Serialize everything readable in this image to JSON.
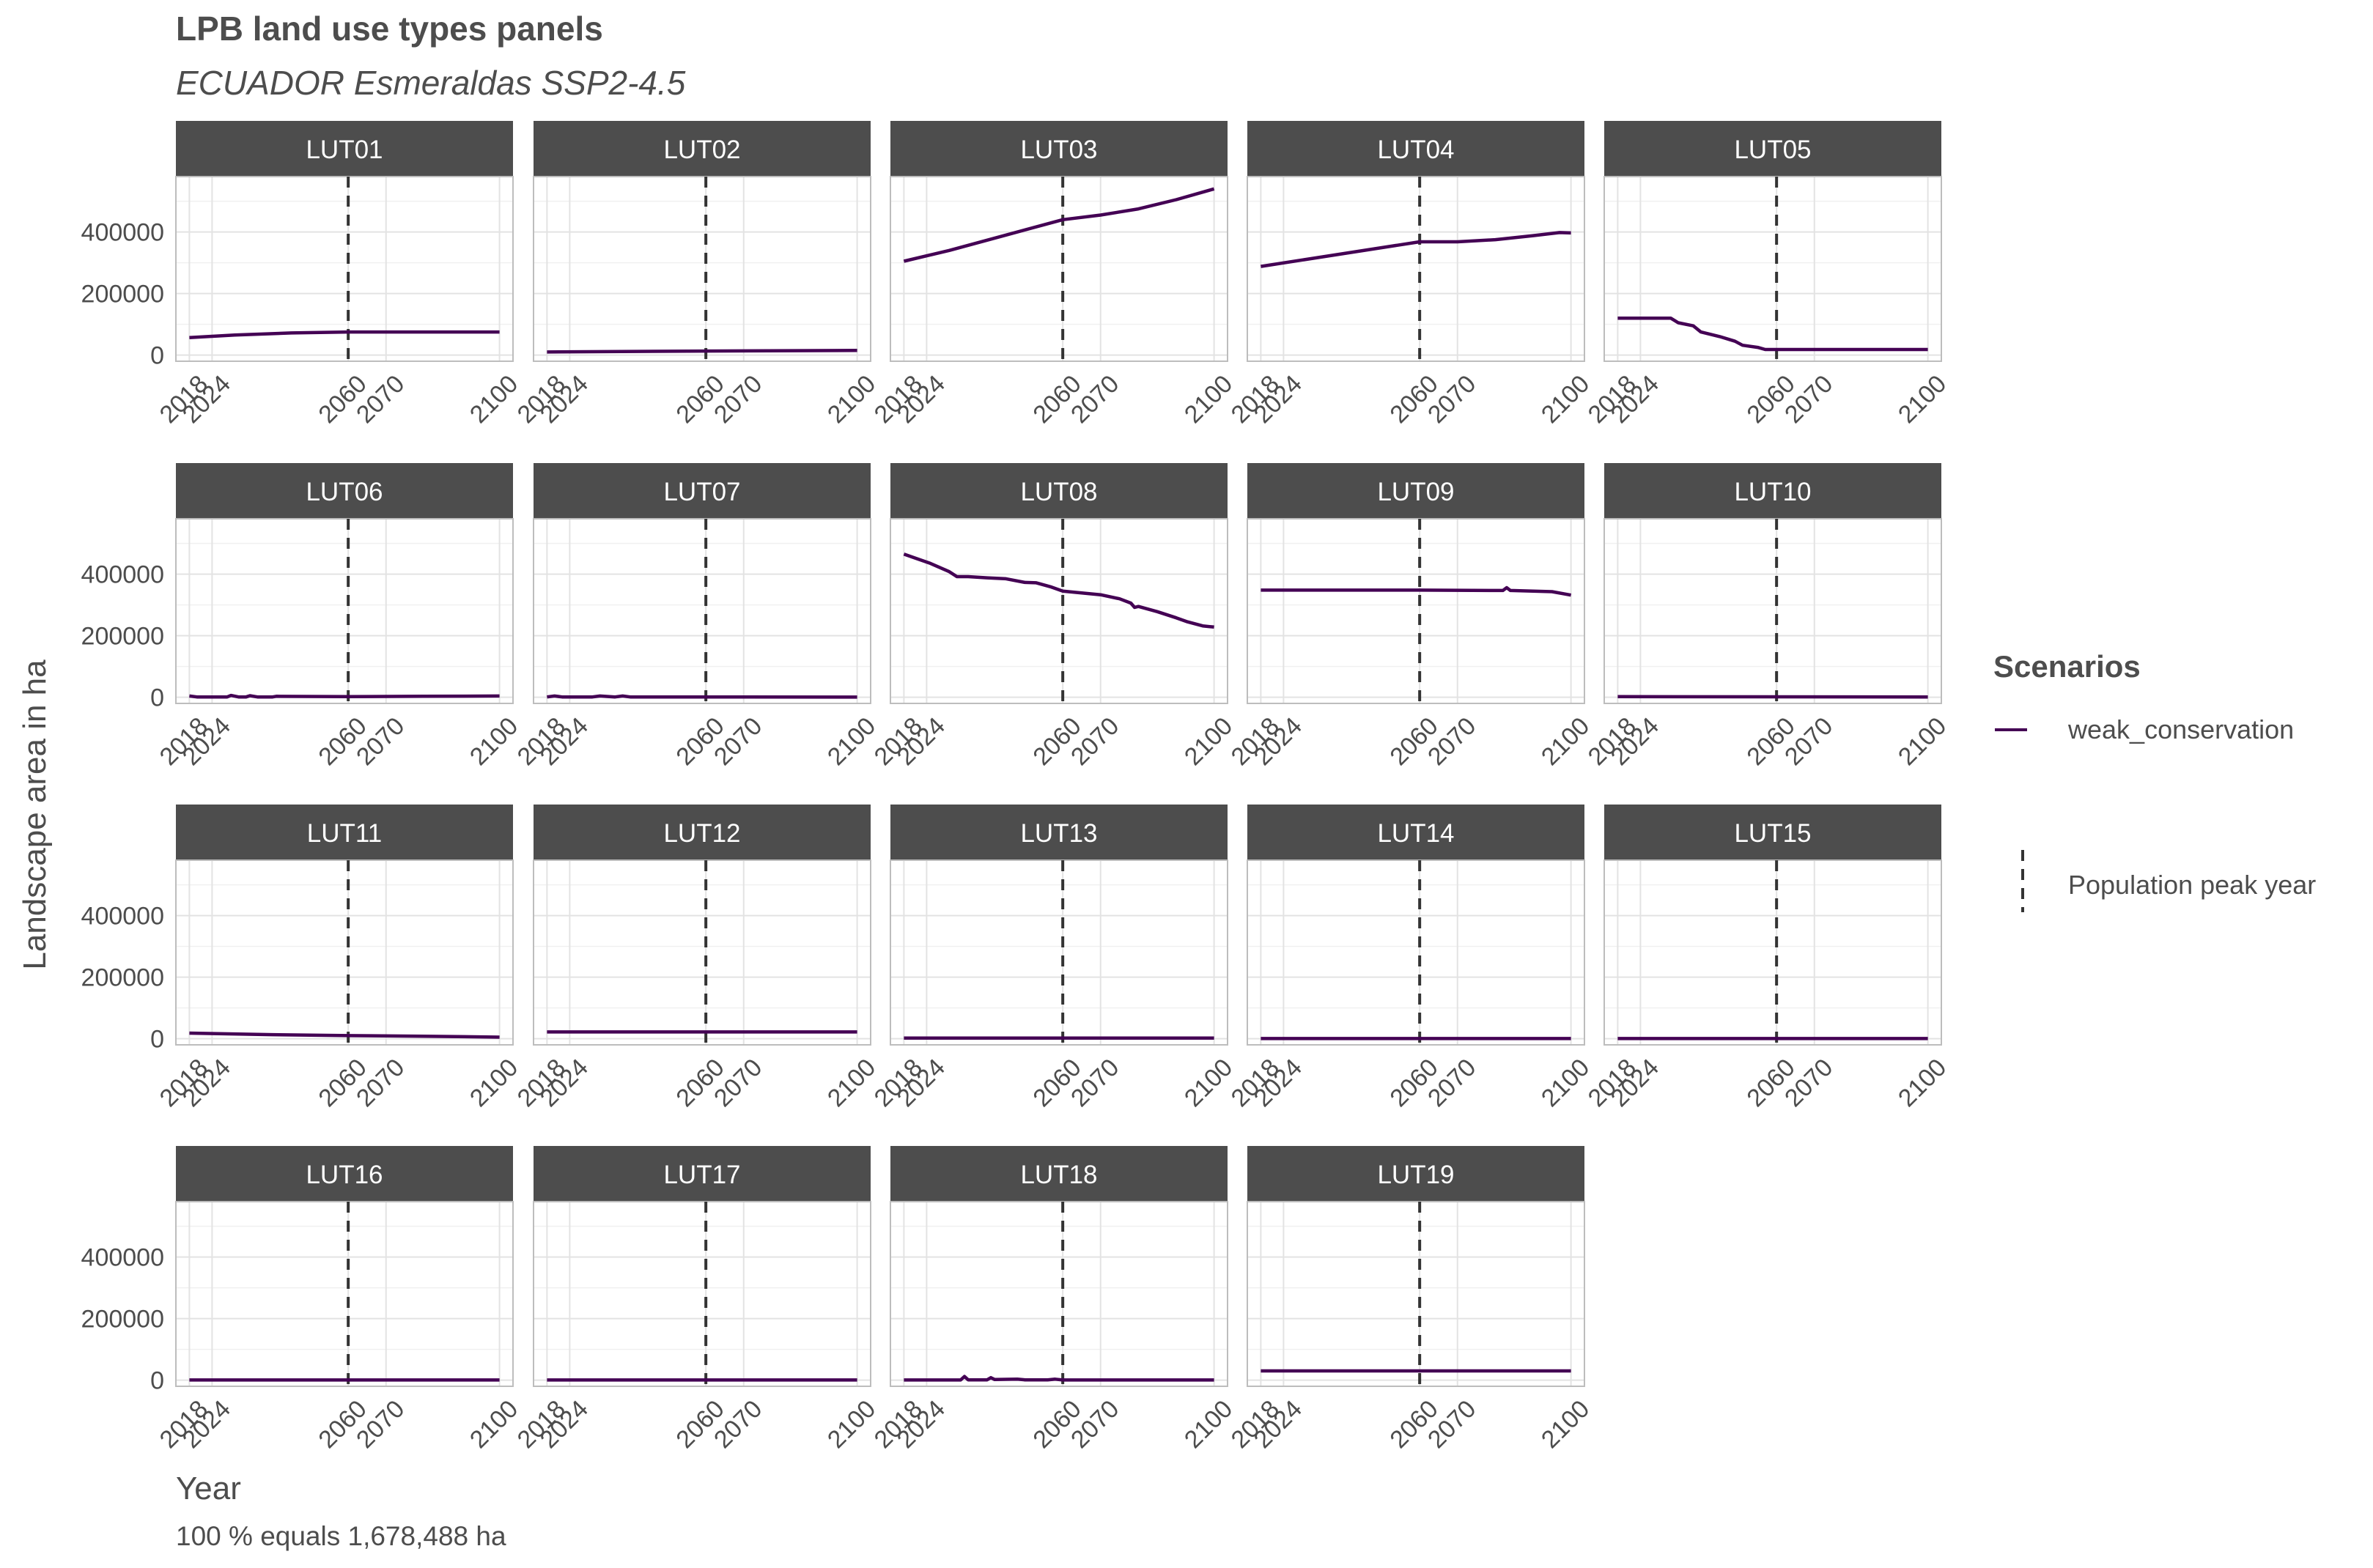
{
  "title": "LPB land use types panels",
  "subtitle": "ECUADOR Esmeraldas SSP2-4.5",
  "caption": "100 % equals 1,678,488 ha",
  "colors": {
    "series": "#440154",
    "peak_line": "#333333",
    "strip": "#4d4d4d",
    "grid": "#e3e3e3",
    "border": "#bdbdbd"
  },
  "chart_data": {
    "type": "line",
    "xlabel": "Year",
    "ylabel": "Landscape area in ha",
    "x_ticks": [
      "2018",
      "2024",
      "2060",
      "2070",
      "2100"
    ],
    "y_ticks": [
      "0",
      "200000",
      "400000"
    ],
    "xlim": [
      2018,
      2100
    ],
    "ylim": [
      -20000,
      580000
    ],
    "grid": true,
    "reference_line": {
      "x": 2060,
      "label": "Population peak year",
      "style": "dashed"
    },
    "legend": {
      "title": "Scenarios",
      "position": "right",
      "entries": [
        "weak_conservation",
        "Population peak year"
      ]
    },
    "panels": [
      {
        "name": "LUT01",
        "series": [
          {
            "name": "weak_conservation",
            "points": [
              [
                2018,
                57000
              ],
              [
                2030,
                65000
              ],
              [
                2045,
                72000
              ],
              [
                2060,
                75000
              ],
              [
                2080,
                75000
              ],
              [
                2100,
                75000
              ]
            ]
          }
        ]
      },
      {
        "name": "LUT02",
        "series": [
          {
            "name": "weak_conservation",
            "points": [
              [
                2018,
                10000
              ],
              [
                2060,
                13000
              ],
              [
                2100,
                15000
              ]
            ]
          }
        ]
      },
      {
        "name": "LUT03",
        "series": [
          {
            "name": "weak_conservation",
            "points": [
              [
                2018,
                305000
              ],
              [
                2030,
                340000
              ],
              [
                2045,
                390000
              ],
              [
                2060,
                440000
              ],
              [
                2070,
                455000
              ],
              [
                2080,
                475000
              ],
              [
                2090,
                505000
              ],
              [
                2100,
                540000
              ]
            ]
          }
        ]
      },
      {
        "name": "LUT04",
        "series": [
          {
            "name": "weak_conservation",
            "points": [
              [
                2018,
                288000
              ],
              [
                2040,
                330000
              ],
              [
                2060,
                368000
              ],
              [
                2070,
                368000
              ],
              [
                2080,
                375000
              ],
              [
                2090,
                388000
              ],
              [
                2097,
                398000
              ],
              [
                2100,
                397000
              ]
            ]
          }
        ]
      },
      {
        "name": "LUT05",
        "series": [
          {
            "name": "weak_conservation",
            "points": [
              [
                2018,
                120000
              ],
              [
                2032,
                120000
              ],
              [
                2034,
                105000
              ],
              [
                2038,
                95000
              ],
              [
                2040,
                75000
              ],
              [
                2045,
                60000
              ],
              [
                2049,
                45000
              ],
              [
                2051,
                32000
              ],
              [
                2055,
                25000
              ],
              [
                2057,
                18000
              ],
              [
                2060,
                18000
              ],
              [
                2100,
                18000
              ]
            ]
          }
        ]
      },
      {
        "name": "LUT06",
        "series": [
          {
            "name": "weak_conservation",
            "points": [
              [
                2018,
                4000
              ],
              [
                2020,
                1000
              ],
              [
                2028,
                1000
              ],
              [
                2029,
                6000
              ],
              [
                2031,
                1000
              ],
              [
                2033,
                1000
              ],
              [
                2034,
                5000
              ],
              [
                2036,
                1000
              ],
              [
                2040,
                1000
              ],
              [
                2041,
                3000
              ],
              [
                2060,
                2000
              ],
              [
                2080,
                3000
              ],
              [
                2100,
                4000
              ]
            ]
          }
        ]
      },
      {
        "name": "LUT07",
        "series": [
          {
            "name": "weak_conservation",
            "points": [
              [
                2018,
                1000
              ],
              [
                2020,
                4000
              ],
              [
                2022,
                1000
              ],
              [
                2030,
                1000
              ],
              [
                2032,
                4000
              ],
              [
                2036,
                1000
              ],
              [
                2038,
                4000
              ],
              [
                2040,
                1000
              ],
              [
                2060,
                1000
              ],
              [
                2100,
                500
              ]
            ]
          }
        ]
      },
      {
        "name": "LUT08",
        "series": [
          {
            "name": "weak_conservation",
            "points": [
              [
                2018,
                465000
              ],
              [
                2025,
                435000
              ],
              [
                2030,
                408000
              ],
              [
                2032,
                392000
              ],
              [
                2035,
                392000
              ],
              [
                2040,
                388000
              ],
              [
                2045,
                385000
              ],
              [
                2050,
                373000
              ],
              [
                2053,
                372000
              ],
              [
                2057,
                358000
              ],
              [
                2060,
                345000
              ],
              [
                2070,
                333000
              ],
              [
                2075,
                320000
              ],
              [
                2078,
                306000
              ],
              [
                2079,
                292000
              ],
              [
                2080,
                295000
              ],
              [
                2085,
                278000
              ],
              [
                2090,
                258000
              ],
              [
                2093,
                245000
              ],
              [
                2097,
                232000
              ],
              [
                2100,
                228000
              ]
            ]
          }
        ]
      },
      {
        "name": "LUT09",
        "series": [
          {
            "name": "weak_conservation",
            "points": [
              [
                2018,
                348000
              ],
              [
                2060,
                348000
              ],
              [
                2082,
                347000
              ],
              [
                2083,
                356000
              ],
              [
                2084,
                347000
              ],
              [
                2095,
                343000
              ],
              [
                2100,
                332000
              ]
            ]
          }
        ]
      },
      {
        "name": "LUT10",
        "series": [
          {
            "name": "weak_conservation",
            "points": [
              [
                2018,
                2000
              ],
              [
                2100,
                1000
              ]
            ]
          }
        ]
      },
      {
        "name": "LUT11",
        "series": [
          {
            "name": "weak_conservation",
            "points": [
              [
                2018,
                18000
              ],
              [
                2040,
                13000
              ],
              [
                2060,
                10000
              ],
              [
                2080,
                8000
              ],
              [
                2100,
                5000
              ]
            ]
          }
        ]
      },
      {
        "name": "LUT12",
        "series": [
          {
            "name": "weak_conservation",
            "points": [
              [
                2018,
                22000
              ],
              [
                2100,
                22000
              ]
            ]
          }
        ]
      },
      {
        "name": "LUT13",
        "series": [
          {
            "name": "weak_conservation",
            "points": [
              [
                2018,
                2000
              ],
              [
                2100,
                2000
              ]
            ]
          }
        ]
      },
      {
        "name": "LUT14",
        "series": [
          {
            "name": "weak_conservation",
            "points": [
              [
                2018,
                500
              ],
              [
                2100,
                500
              ]
            ]
          }
        ]
      },
      {
        "name": "LUT15",
        "series": [
          {
            "name": "weak_conservation",
            "points": [
              [
                2018,
                500
              ],
              [
                2100,
                500
              ]
            ]
          }
        ]
      },
      {
        "name": "LUT16",
        "series": [
          {
            "name": "weak_conservation",
            "points": [
              [
                2018,
                500
              ],
              [
                2100,
                500
              ]
            ]
          }
        ]
      },
      {
        "name": "LUT17",
        "series": [
          {
            "name": "weak_conservation",
            "points": [
              [
                2018,
                500
              ],
              [
                2100,
                500
              ]
            ]
          }
        ]
      },
      {
        "name": "LUT18",
        "series": [
          {
            "name": "weak_conservation",
            "points": [
              [
                2018,
                500
              ],
              [
                2033,
                500
              ],
              [
                2034,
                12000
              ],
              [
                2035,
                1000
              ],
              [
                2040,
                1000
              ],
              [
                2041,
                8000
              ],
              [
                2042,
                2000
              ],
              [
                2048,
                3000
              ],
              [
                2050,
                1000
              ],
              [
                2056,
                1000
              ],
              [
                2058,
                3000
              ],
              [
                2060,
                500
              ],
              [
                2100,
                500
              ]
            ]
          }
        ]
      },
      {
        "name": "LUT19",
        "series": [
          {
            "name": "weak_conservation",
            "points": [
              [
                2018,
                30000
              ],
              [
                2100,
                30000
              ]
            ]
          }
        ]
      }
    ]
  }
}
